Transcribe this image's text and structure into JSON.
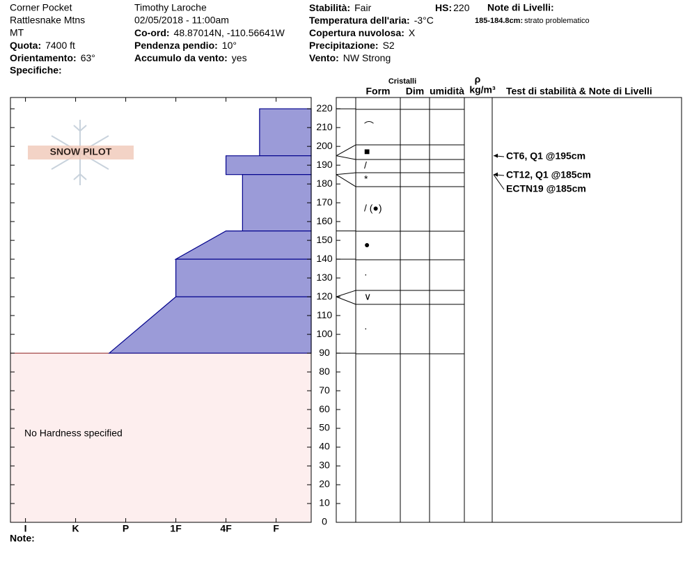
{
  "header": {
    "location": [
      "Corner Pocket",
      "Rattlesnake Mtns",
      "MT"
    ],
    "fields_left": [
      {
        "label": "Quota:",
        "value": "7400 ft"
      },
      {
        "label": "Orientamento:",
        "value": "63°"
      }
    ],
    "specifiche": "Specifiche:",
    "observer": "Timothy  Laroche",
    "datetime": "02/05/2018 - 11:00am",
    "fields_mid": [
      {
        "label": "Co-ord:",
        "value": "48.87014N, -110.56641W"
      },
      {
        "label": "Pendenza pendio:",
        "value": "10°"
      },
      {
        "label": "Accumulo da vento:",
        "value": "yes"
      }
    ],
    "fields_right": [
      {
        "label": "Stabilità:",
        "value": "Fair"
      },
      {
        "label": "Temperatura dell'aria:",
        "value": "-3°C"
      },
      {
        "label": "Copertura nuvolosa:",
        "value": "X"
      },
      {
        "label": "Precipitazione:",
        "value": "S2"
      },
      {
        "label": "Vento:",
        "value": "NW Strong"
      }
    ],
    "hs": {
      "label": "HS:",
      "value": "220"
    },
    "notes_title": "Note di Livelli:",
    "notes": [
      {
        "label": "185-184.8cm:",
        "value": "strato problematico"
      }
    ]
  },
  "chart_data": {
    "type": "hardness-profile",
    "logo": "SNOW PILOT",
    "annotation": "No Hardness specified",
    "ylim": [
      0,
      226
    ],
    "yticks": [
      0,
      10,
      20,
      30,
      40,
      50,
      60,
      70,
      80,
      90,
      100,
      110,
      120,
      130,
      140,
      150,
      160,
      170,
      180,
      190,
      200,
      210,
      220
    ],
    "xlim": [
      6.3,
      0.3
    ],
    "xticks": [
      {
        "value": 6,
        "label": "I"
      },
      {
        "value": 5,
        "label": "K"
      },
      {
        "value": 4,
        "label": "P"
      },
      {
        "value": 3,
        "label": "1F"
      },
      {
        "value": 2,
        "label": "4F"
      },
      {
        "value": 1,
        "label": "F"
      }
    ],
    "color": "#9b9bd8",
    "edge_color": "#00008b",
    "ground_color": "#fdeeee",
    "layers": [
      {
        "top": 220,
        "bottom": 195,
        "hardness_top": 1.33,
        "hardness_bottom": 1.33
      },
      {
        "top": 195,
        "bottom": 185,
        "hardness_top": 2,
        "hardness_bottom": 2
      },
      {
        "top": 185,
        "bottom": 155,
        "hardness_top": 1.67,
        "hardness_bottom": 1.67
      },
      {
        "top": 155,
        "bottom": 140,
        "hardness_top": 2,
        "hardness_bottom": 3
      },
      {
        "top": 140,
        "bottom": 120,
        "hardness_top": 3,
        "hardness_bottom": 3
      },
      {
        "top": 120,
        "bottom": 90,
        "hardness_top": 3,
        "hardness_bottom": 4.33
      }
    ]
  },
  "crystals": {
    "title": "Cristalli",
    "columns": [
      "Form",
      "Dim",
      "umidità"
    ],
    "density_symbol": "ρ",
    "density_unit": "kg/m³",
    "tests_title": "Test di stabilità & Note di Livelli",
    "forms": [
      "⌒",
      "■",
      "/",
      "*",
      "/ (●)",
      "●",
      "·",
      "∨",
      "·"
    ],
    "thin_layer_heights": [
      195,
      185,
      120
    ],
    "boundaries": [
      220,
      155,
      140,
      90
    ],
    "tests": [
      {
        "text": "CT6, Q1 @195cm",
        "height": 195
      },
      {
        "text": "CT12, Q1 @185cm",
        "height": 185
      },
      {
        "text": "ECTN19 @185cm",
        "height": 185
      }
    ]
  },
  "footer": {
    "note": "Note:"
  }
}
